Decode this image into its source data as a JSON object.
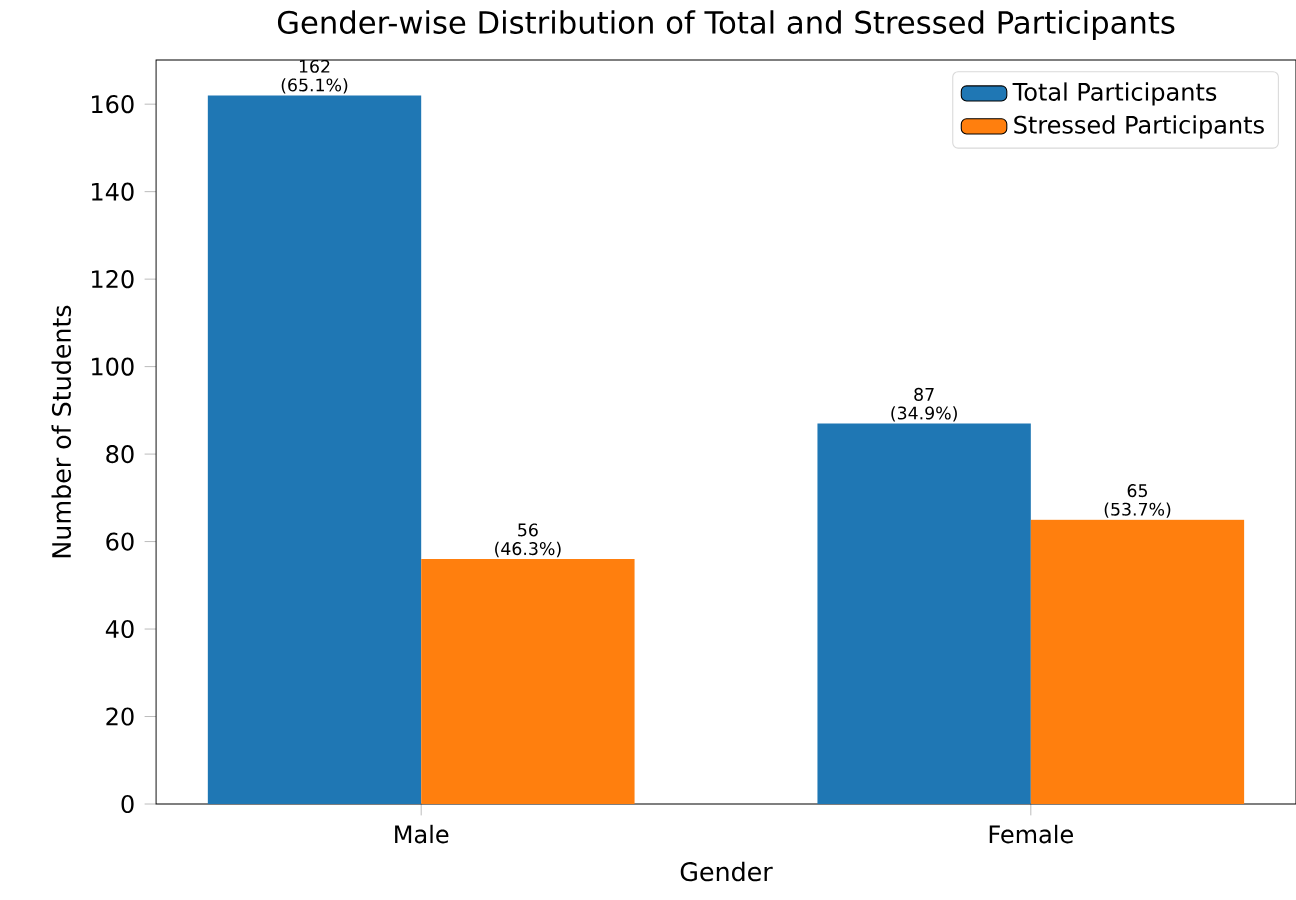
{
  "chart_data": {
    "type": "bar",
    "title": "Gender-wise Distribution of Total and Stressed Participants",
    "xlabel": "Gender",
    "ylabel": "Number of Students",
    "categories": [
      "Male",
      "Female"
    ],
    "series": [
      {
        "name": "Total Participants",
        "color": "#1f77b4",
        "values": [
          162,
          87
        ],
        "value_labels": [
          "162 (65.1%)",
          "87 (34.9%)"
        ]
      },
      {
        "name": "Stressed Participants",
        "color": "#ff7f0e",
        "values": [
          56,
          65
        ],
        "value_labels": [
          "56 (46.3%)",
          "65 (53.7%)"
        ]
      }
    ],
    "ylim": [
      0,
      170.1
    ],
    "yticks": [
      0,
      20,
      40,
      60,
      80,
      100,
      120,
      140,
      160
    ],
    "legend": "top right"
  }
}
